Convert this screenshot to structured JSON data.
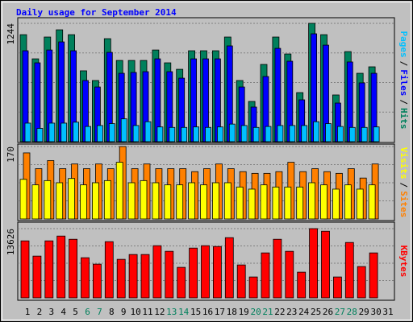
{
  "chart_data": {
    "type": "bar",
    "title": "Daily usage for September 2014",
    "categories": [
      "1",
      "2",
      "3",
      "4",
      "5",
      "6",
      "7",
      "8",
      "9",
      "10",
      "11",
      "12",
      "13",
      "14",
      "15",
      "16",
      "17",
      "18",
      "19",
      "20",
      "21",
      "22",
      "23",
      "24",
      "25",
      "26",
      "27",
      "28",
      "29",
      "30",
      "31"
    ],
    "category_colors": [
      "#000000",
      "#000000",
      "#000000",
      "#000000",
      "#000000",
      "#00805c",
      "#00805c",
      "#000000",
      "#000000",
      "#000000",
      "#000000",
      "#000000",
      "#00805c",
      "#00805c",
      "#000000",
      "#000000",
      "#000000",
      "#000000",
      "#000000",
      "#00805c",
      "#00805c",
      "#000000",
      "#000000",
      "#000000",
      "#000000",
      "#000000",
      "#00805c",
      "#00805c",
      "#000000",
      "#000000",
      "#000000"
    ],
    "legend_separator": "/",
    "grid": true,
    "panels": [
      {
        "ylim": [
          0,
          1244
        ],
        "yticks": [
          1244
        ],
        "series": [
          {
            "name": "Hits",
            "color": "#00805c",
            "values": [
              1125,
              871,
              1100,
              1176,
              1125,
              745,
              643,
              1083,
              854,
              854,
              854,
              964,
              829,
              761,
              956,
              956,
              956,
              1100,
              643,
              423,
              812,
              1100,
              922,
              516,
              1244,
              1125,
              491,
              947,
              719,
              787,
              0
            ]
          },
          {
            "name": "Files",
            "color": "#0000ff",
            "values": [
              956,
              829,
              964,
              1049,
              956,
              643,
              575,
              939,
              719,
              728,
              736,
              871,
              736,
              668,
              871,
              871,
              871,
              1007,
              575,
              364,
              685,
              981,
              846,
              440,
              1134,
              1015,
              406,
              838,
              618,
              719,
              0
            ]
          },
          {
            "name": "Pages",
            "color": "#00c0ff",
            "values": [
              195,
              140,
              195,
              195,
              205,
              160,
              170,
              190,
              240,
              170,
              210,
              155,
              150,
              150,
              155,
              150,
              155,
              185,
              170,
              150,
              160,
              170,
              170,
              170,
              210,
              190,
              160,
              150,
              150,
              155,
              0
            ]
          }
        ]
      },
      {
        "ylim": [
          0,
          170
        ],
        "yticks": [
          170
        ],
        "series": [
          {
            "name": "Sites",
            "color": "#ff8000",
            "values": [
              155,
              118,
              137,
              118,
              129,
              118,
              129,
              118,
              170,
              118,
              129,
              118,
              118,
              118,
              111,
              118,
              129,
              118,
              111,
              107,
              107,
              111,
              133,
              111,
              118,
              111,
              107,
              118,
              96,
              129,
              0
            ]
          },
          {
            "name": "Visits",
            "color": "#ffff00",
            "values": [
              93,
              80,
              90,
              85,
              95,
              80,
              85,
              90,
              133,
              85,
              90,
              85,
              80,
              80,
              85,
              80,
              85,
              85,
              75,
              70,
              80,
              75,
              75,
              75,
              85,
              80,
              70,
              80,
              70,
              80,
              0
            ]
          }
        ]
      },
      {
        "ylim": [
          0,
          13626
        ],
        "yticks": [
          13626
        ],
        "series": [
          {
            "name": "KBytes",
            "color": "#ff0000",
            "values": [
              11218,
              8216,
              11218,
              12166,
              11534,
              7900,
              6636,
              11060,
              7584,
              8532,
              8532,
              10270,
              9164,
              6004,
              9796,
              10270,
              10112,
              11850,
              6478,
              4108,
              8848,
              11534,
              9164,
              5056,
              13626,
              13114,
              4108,
              10902,
              6162,
              8848,
              0
            ]
          }
        ]
      }
    ]
  }
}
